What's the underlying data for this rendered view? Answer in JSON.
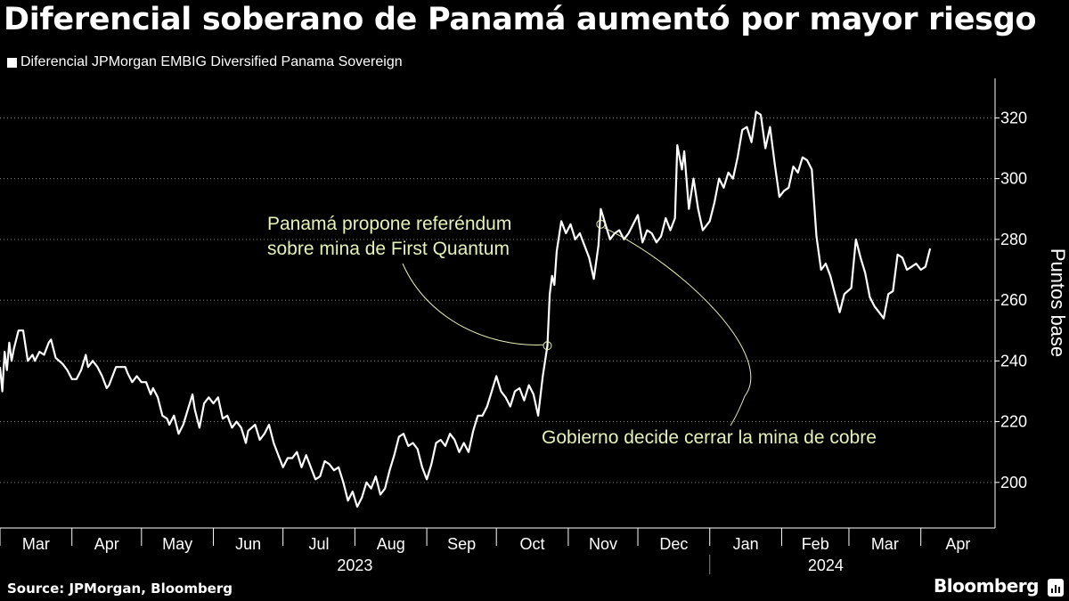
{
  "title": "Diferencial soberano de Panamá aumentó por mayor riesgo",
  "source": "Source: JPMorgan, Bloomberg",
  "brand": "Bloomberg",
  "brand_icon": "bloomberg-bar-chart-icon",
  "colors": {
    "background": "#000000",
    "line": "#ffffff",
    "annotation": "#e4f2b6",
    "grid": "#888888",
    "text": "#ffffff"
  },
  "chart_data": {
    "type": "line",
    "title": "Diferencial soberano de Panamá aumentó por mayor riesgo",
    "ylabel": "Puntos base",
    "ylim": [
      185,
      333
    ],
    "xlim": [
      "2023-03-01",
      "2024-05-03"
    ],
    "y_ticks": [
      200,
      220,
      240,
      260,
      280,
      300,
      320
    ],
    "grid": "horizontal dotted",
    "legend_position": "top-left",
    "legend": [
      "Diferencial JPMorgan EMBIG Diversified Panama Sovereign"
    ],
    "x_month_labels": [
      {
        "label": "Mar",
        "date": "2023-03-01"
      },
      {
        "label": "Apr",
        "date": "2023-04-01"
      },
      {
        "label": "May",
        "date": "2023-05-01"
      },
      {
        "label": "Jun",
        "date": "2023-06-01"
      },
      {
        "label": "Jul",
        "date": "2023-07-01"
      },
      {
        "label": "Aug",
        "date": "2023-08-01"
      },
      {
        "label": "Sep",
        "date": "2023-09-01"
      },
      {
        "label": "Oct",
        "date": "2023-10-01"
      },
      {
        "label": "Nov",
        "date": "2023-11-01"
      },
      {
        "label": "Dec",
        "date": "2023-12-01"
      },
      {
        "label": "Jan",
        "date": "2024-01-01"
      },
      {
        "label": "Feb",
        "date": "2024-02-01"
      },
      {
        "label": "Mar",
        "date": "2024-03-01"
      },
      {
        "label": "Apr",
        "date": "2024-04-01"
      }
    ],
    "year_labels": [
      {
        "label": "2023",
        "date": "2023-08-01"
      },
      {
        "label": "2024",
        "date": "2024-02-20"
      }
    ],
    "year_divider_date": "2024-01-01",
    "series": [
      {
        "name": "Diferencial JPMorgan EMBIG Diversified Panama Sovereign",
        "points": [
          [
            "2023-03-01",
            238
          ],
          [
            "2023-03-02",
            230
          ],
          [
            "2023-03-03",
            243
          ],
          [
            "2023-03-04",
            237
          ],
          [
            "2023-03-05",
            246
          ],
          [
            "2023-03-06",
            240
          ],
          [
            "2023-03-07",
            244
          ],
          [
            "2023-03-09",
            250
          ],
          [
            "2023-03-11",
            250
          ],
          [
            "2023-03-12",
            245
          ],
          [
            "2023-03-13",
            240
          ],
          [
            "2023-03-15",
            242
          ],
          [
            "2023-03-16",
            240
          ],
          [
            "2023-03-18",
            243
          ],
          [
            "2023-03-20",
            242
          ],
          [
            "2023-03-22",
            246
          ],
          [
            "2023-03-23",
            247
          ],
          [
            "2023-03-25",
            241
          ],
          [
            "2023-03-28",
            239
          ],
          [
            "2023-03-30",
            237
          ],
          [
            "2023-04-01",
            234
          ],
          [
            "2023-04-03",
            234
          ],
          [
            "2023-04-05",
            237
          ],
          [
            "2023-04-07",
            242
          ],
          [
            "2023-04-08",
            238
          ],
          [
            "2023-04-10",
            240
          ],
          [
            "2023-04-12",
            238
          ],
          [
            "2023-04-14",
            235
          ],
          [
            "2023-04-16",
            231
          ],
          [
            "2023-04-17",
            232
          ],
          [
            "2023-04-20",
            238
          ],
          [
            "2023-04-22",
            238
          ],
          [
            "2023-04-24",
            238
          ],
          [
            "2023-04-25",
            236
          ],
          [
            "2023-04-27",
            233
          ],
          [
            "2023-04-29",
            235
          ],
          [
            "2023-05-01",
            233
          ],
          [
            "2023-05-03",
            233
          ],
          [
            "2023-05-05",
            229
          ],
          [
            "2023-05-06",
            231
          ],
          [
            "2023-05-08",
            228
          ],
          [
            "2023-05-10",
            222
          ],
          [
            "2023-05-12",
            221
          ],
          [
            "2023-05-13",
            219
          ],
          [
            "2023-05-15",
            222
          ],
          [
            "2023-05-17",
            216
          ],
          [
            "2023-05-19",
            219
          ],
          [
            "2023-05-21",
            224
          ],
          [
            "2023-05-23",
            229
          ],
          [
            "2023-05-24",
            224
          ],
          [
            "2023-05-26",
            218
          ],
          [
            "2023-05-28",
            226
          ],
          [
            "2023-05-30",
            228
          ],
          [
            "2023-06-01",
            226
          ],
          [
            "2023-06-03",
            228
          ],
          [
            "2023-06-05",
            221
          ],
          [
            "2023-06-07",
            222
          ],
          [
            "2023-06-09",
            218
          ],
          [
            "2023-06-11",
            220
          ],
          [
            "2023-06-13",
            218
          ],
          [
            "2023-06-15",
            213
          ],
          [
            "2023-06-16",
            217
          ],
          [
            "2023-06-19",
            219
          ],
          [
            "2023-06-21",
            214
          ],
          [
            "2023-06-23",
            216
          ],
          [
            "2023-06-25",
            219
          ],
          [
            "2023-06-27",
            213
          ],
          [
            "2023-06-29",
            209
          ],
          [
            "2023-07-01",
            205
          ],
          [
            "2023-07-03",
            208
          ],
          [
            "2023-07-05",
            208
          ],
          [
            "2023-07-07",
            210
          ],
          [
            "2023-07-09",
            205
          ],
          [
            "2023-07-11",
            209
          ],
          [
            "2023-07-13",
            205
          ],
          [
            "2023-07-15",
            201
          ],
          [
            "2023-07-17",
            202
          ],
          [
            "2023-07-19",
            207
          ],
          [
            "2023-07-21",
            206
          ],
          [
            "2023-07-23",
            204
          ],
          [
            "2023-07-25",
            205
          ],
          [
            "2023-07-27",
            200
          ],
          [
            "2023-07-29",
            194
          ],
          [
            "2023-07-31",
            197
          ],
          [
            "2023-08-02",
            192
          ],
          [
            "2023-08-04",
            195
          ],
          [
            "2023-08-06",
            200
          ],
          [
            "2023-08-08",
            198
          ],
          [
            "2023-08-10",
            202
          ],
          [
            "2023-08-12",
            196
          ],
          [
            "2023-08-14",
            198
          ],
          [
            "2023-08-16",
            204
          ],
          [
            "2023-08-18",
            209
          ],
          [
            "2023-08-20",
            215
          ],
          [
            "2023-08-22",
            216
          ],
          [
            "2023-08-24",
            212
          ],
          [
            "2023-08-26",
            213
          ],
          [
            "2023-08-28",
            211
          ],
          [
            "2023-08-30",
            205
          ],
          [
            "2023-09-01",
            201
          ],
          [
            "2023-09-03",
            206
          ],
          [
            "2023-09-05",
            213
          ],
          [
            "2023-09-07",
            214
          ],
          [
            "2023-09-09",
            212
          ],
          [
            "2023-09-11",
            216
          ],
          [
            "2023-09-13",
            214
          ],
          [
            "2023-09-15",
            210
          ],
          [
            "2023-09-17",
            213
          ],
          [
            "2023-09-19",
            210
          ],
          [
            "2023-09-21",
            217
          ],
          [
            "2023-09-23",
            222
          ],
          [
            "2023-09-25",
            222
          ],
          [
            "2023-09-27",
            225
          ],
          [
            "2023-09-29",
            230
          ],
          [
            "2023-10-01",
            235
          ],
          [
            "2023-10-03",
            230
          ],
          [
            "2023-10-05",
            228
          ],
          [
            "2023-10-07",
            225
          ],
          [
            "2023-10-09",
            230
          ],
          [
            "2023-10-11",
            231
          ],
          [
            "2023-10-13",
            227
          ],
          [
            "2023-10-15",
            232
          ],
          [
            "2023-10-17",
            229
          ],
          [
            "2023-10-19",
            222
          ],
          [
            "2023-10-21",
            235
          ],
          [
            "2023-10-23",
            245
          ],
          [
            "2023-10-24",
            262
          ],
          [
            "2023-10-25",
            268
          ],
          [
            "2023-10-26",
            265
          ],
          [
            "2023-10-27",
            276
          ],
          [
            "2023-10-29",
            286
          ],
          [
            "2023-10-31",
            282
          ],
          [
            "2023-11-02",
            285
          ],
          [
            "2023-11-04",
            280
          ],
          [
            "2023-11-06",
            282
          ],
          [
            "2023-11-08",
            278
          ],
          [
            "2023-11-10",
            274
          ],
          [
            "2023-11-12",
            267
          ],
          [
            "2023-11-14",
            278
          ],
          [
            "2023-11-15",
            290
          ],
          [
            "2023-11-17",
            285
          ],
          [
            "2023-11-19",
            280
          ],
          [
            "2023-11-21",
            282
          ],
          [
            "2023-11-23",
            283
          ],
          [
            "2023-11-25",
            280
          ],
          [
            "2023-11-27",
            282
          ],
          [
            "2023-11-29",
            285
          ],
          [
            "2023-12-01",
            288
          ],
          [
            "2023-12-03",
            279
          ],
          [
            "2023-12-05",
            283
          ],
          [
            "2023-12-07",
            282
          ],
          [
            "2023-12-09",
            279
          ],
          [
            "2023-12-11",
            281
          ],
          [
            "2023-12-13",
            287
          ],
          [
            "2023-12-15",
            283
          ],
          [
            "2023-12-17",
            287
          ],
          [
            "2023-12-18",
            311
          ],
          [
            "2023-12-20",
            303
          ],
          [
            "2023-12-21",
            309
          ],
          [
            "2023-12-23",
            290
          ],
          [
            "2023-12-25",
            300
          ],
          [
            "2023-12-27",
            290
          ],
          [
            "2023-12-29",
            283
          ],
          [
            "2024-01-01",
            286
          ],
          [
            "2024-01-03",
            292
          ],
          [
            "2024-01-05",
            300
          ],
          [
            "2024-01-07",
            297
          ],
          [
            "2024-01-09",
            302
          ],
          [
            "2024-01-11",
            300
          ],
          [
            "2024-01-13",
            307
          ],
          [
            "2024-01-15",
            316
          ],
          [
            "2024-01-17",
            317
          ],
          [
            "2024-01-19",
            312
          ],
          [
            "2024-01-21",
            322
          ],
          [
            "2024-01-23",
            321
          ],
          [
            "2024-01-25",
            310
          ],
          [
            "2024-01-27",
            317
          ],
          [
            "2024-01-29",
            305
          ],
          [
            "2024-01-31",
            294
          ],
          [
            "2024-02-02",
            296
          ],
          [
            "2024-02-04",
            297
          ],
          [
            "2024-02-06",
            304
          ],
          [
            "2024-02-08",
            302
          ],
          [
            "2024-02-10",
            307
          ],
          [
            "2024-02-12",
            306
          ],
          [
            "2024-02-14",
            303
          ],
          [
            "2024-02-16",
            281
          ],
          [
            "2024-02-18",
            270
          ],
          [
            "2024-02-20",
            272
          ],
          [
            "2024-02-22",
            268
          ],
          [
            "2024-02-24",
            262
          ],
          [
            "2024-02-26",
            256
          ],
          [
            "2024-02-28",
            262
          ],
          [
            "2024-03-02",
            264
          ],
          [
            "2024-03-04",
            280
          ],
          [
            "2024-03-06",
            274
          ],
          [
            "2024-03-08",
            269
          ],
          [
            "2024-03-10",
            261
          ],
          [
            "2024-03-12",
            258
          ],
          [
            "2024-03-14",
            256
          ],
          [
            "2024-03-16",
            254
          ],
          [
            "2024-03-18",
            262
          ],
          [
            "2024-03-20",
            263
          ],
          [
            "2024-03-22",
            275
          ],
          [
            "2024-03-24",
            274
          ],
          [
            "2024-03-26",
            270
          ],
          [
            "2024-03-28",
            271
          ],
          [
            "2024-03-30",
            272
          ],
          [
            "2024-04-01",
            270
          ],
          [
            "2024-04-03",
            271
          ],
          [
            "2024-04-05",
            277
          ]
        ]
      }
    ],
    "annotations": [
      {
        "text_lines": [
          "Panamá propone referéndum",
          "sobre mina de First Quantum"
        ],
        "date": "2023-10-23",
        "value": 245
      },
      {
        "text_lines": [
          "Gobierno decide cerrar la mina de cobre"
        ],
        "date": "2023-11-15",
        "value": 285
      }
    ]
  }
}
